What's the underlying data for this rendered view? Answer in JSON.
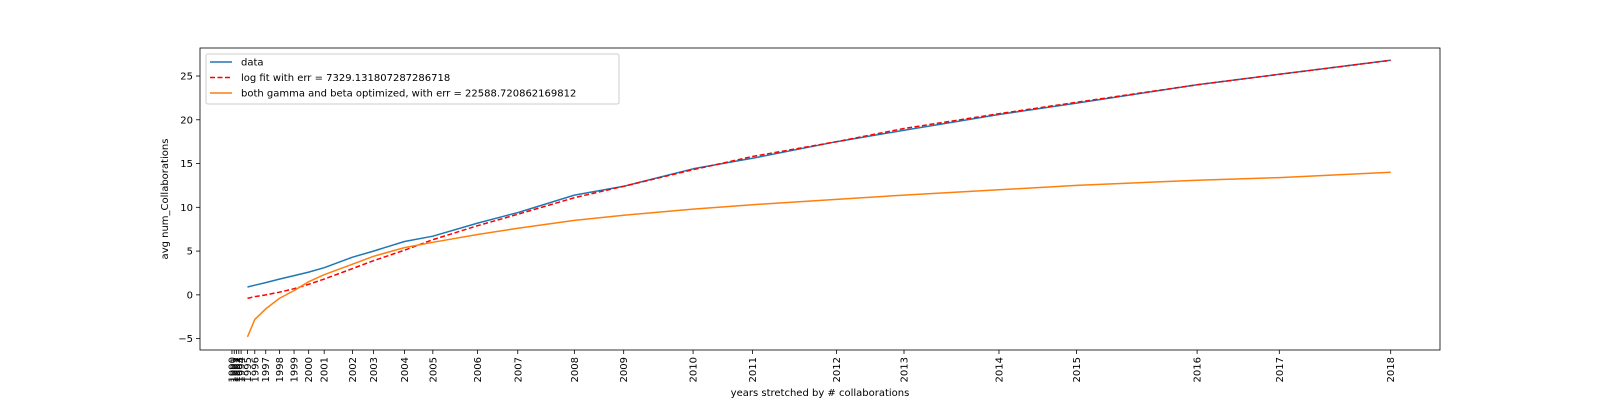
{
  "chart_data": {
    "type": "line",
    "title": "",
    "xlabel": "years stretched by # collaborations",
    "ylabel": "avg num_Collaborations",
    "ylim": [
      -6.3,
      28.2
    ],
    "yticks": [
      -5,
      0,
      5,
      10,
      15,
      20,
      25
    ],
    "grid": false,
    "legend_position": "top-left",
    "xticks": [
      {
        "label": "1990",
        "x": 1.5
      },
      {
        "label": "1991",
        "x": 1.75
      },
      {
        "label": "1992",
        "x": 2.0
      },
      {
        "label": "1993",
        "x": 2.25
      },
      {
        "label": "1994",
        "x": 2.5
      },
      {
        "label": "1995",
        "x": 3.2
      },
      {
        "label": "1996",
        "x": 4.0
      },
      {
        "label": "1997",
        "x": 5.2
      },
      {
        "label": "1998",
        "x": 6.7
      },
      {
        "label": "1999",
        "x": 8.3
      },
      {
        "label": "2000",
        "x": 9.9
      },
      {
        "label": "2001",
        "x": 11.6
      },
      {
        "label": "2002",
        "x": 14.7
      },
      {
        "label": "2003",
        "x": 17.0
      },
      {
        "label": "2004",
        "x": 20.4
      },
      {
        "label": "2005",
        "x": 23.5
      },
      {
        "label": "2006",
        "x": 28.4
      },
      {
        "label": "2007",
        "x": 32.8
      },
      {
        "label": "2008",
        "x": 39.0
      },
      {
        "label": "2009",
        "x": 44.4
      },
      {
        "label": "2010",
        "x": 52.0
      },
      {
        "label": "2011",
        "x": 58.5
      },
      {
        "label": "2012",
        "x": 67.7
      },
      {
        "label": "2013",
        "x": 75.1
      },
      {
        "label": "2014",
        "x": 85.5
      },
      {
        "label": "2015",
        "x": 94.0
      },
      {
        "label": "2016",
        "x": 107.2
      },
      {
        "label": "2017",
        "x": 116.2
      },
      {
        "label": "2018",
        "x": 128.4
      }
    ],
    "x": [
      3.2,
      4.0,
      5.2,
      6.7,
      8.3,
      9.9,
      11.6,
      14.7,
      17.0,
      20.4,
      23.5,
      28.4,
      32.8,
      39.0,
      44.4,
      52.0,
      58.5,
      67.7,
      75.1,
      85.5,
      94.0,
      107.2,
      116.2,
      128.4
    ],
    "series": [
      {
        "name": "data",
        "color": "#1f77b4",
        "dash": "solid",
        "values": [
          0.9,
          1.1,
          1.4,
          1.8,
          2.2,
          2.6,
          3.1,
          4.3,
          5.0,
          6.1,
          6.7,
          8.2,
          9.4,
          11.4,
          12.4,
          14.4,
          15.6,
          17.5,
          18.8,
          20.6,
          21.9,
          24.0,
          25.2,
          26.8
        ]
      },
      {
        "name": "log fit with err = 7329.131807287286718",
        "color": "#ff0000",
        "dash": "dashed",
        "values": [
          -0.4,
          -0.2,
          0.0,
          0.3,
          0.7,
          1.2,
          1.8,
          3.0,
          3.9,
          5.1,
          6.3,
          7.9,
          9.2,
          11.1,
          12.4,
          14.3,
          15.8,
          17.5,
          19.0,
          20.7,
          22.0,
          24.0,
          25.2,
          26.8
        ]
      },
      {
        "name": "both gamma and beta optimized, with err = 22588.720862169812",
        "color": "#ff7f0e",
        "dash": "solid",
        "values": [
          -4.8,
          -2.8,
          -1.6,
          -0.4,
          0.5,
          1.5,
          2.3,
          3.5,
          4.4,
          5.4,
          6.0,
          6.9,
          7.6,
          8.5,
          9.1,
          9.8,
          10.3,
          10.9,
          11.4,
          12.0,
          12.5,
          13.1,
          13.4,
          14.0
        ]
      }
    ]
  }
}
